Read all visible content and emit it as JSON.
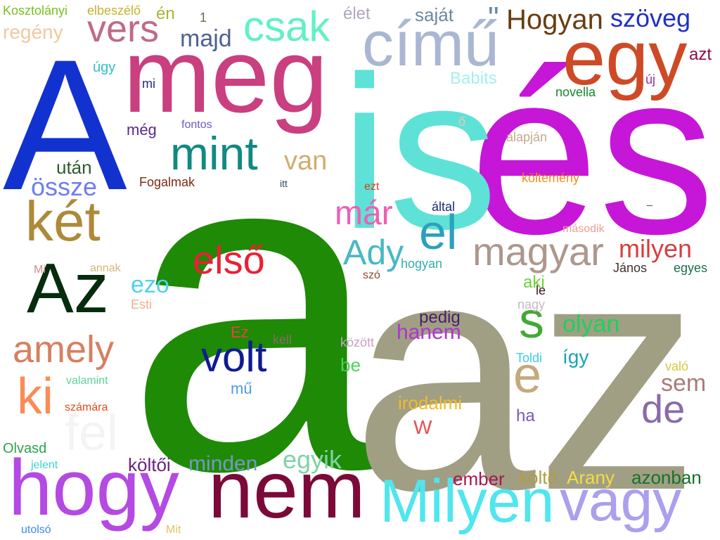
{
  "words": [
    {
      "text": "a",
      "color": "#1e8a06"
    },
    {
      "text": "az",
      "color": "#a09f84"
    },
    {
      "text": "és",
      "color": "#c616d8"
    },
    {
      "text": "is",
      "color": "#5ee2d8"
    },
    {
      "text": "A",
      "color": "#1232cf"
    },
    {
      "text": "meg",
      "color": "#c93f7f"
    },
    {
      "text": "egy",
      "color": "#ce4a26"
    },
    {
      "text": "című",
      "color": "#a9b7d2"
    },
    {
      "text": "nem",
      "color": "#7b0a38"
    },
    {
      "text": "hogy",
      "color": "#b44ae2"
    },
    {
      "text": "Milyen",
      "color": "#4fe6ee"
    },
    {
      "text": "vagy",
      "color": "#aaa0ee"
    },
    {
      "text": "Az",
      "color": "#052c0d"
    },
    {
      "text": "két",
      "color": "#ad8a3a"
    },
    {
      "text": "mint",
      "color": "#108a80"
    },
    {
      "text": "csak",
      "color": "#62f0c6"
    },
    {
      "text": "vers",
      "color": "#c06a88"
    },
    {
      "text": "el",
      "color": "#2ba1bb"
    },
    {
      "text": "magyar",
      "color": "#ad978c"
    },
    {
      "text": "első",
      "color": "#ec1f36"
    },
    {
      "text": "volt",
      "color": "#0e1a96"
    },
    {
      "text": "amely",
      "color": "#d77f61"
    },
    {
      "text": "ki",
      "color": "#fb8c55"
    },
    {
      "text": "fel",
      "color": "#f4f4f4"
    },
    {
      "text": "s",
      "color": "#42a936"
    },
    {
      "text": "e",
      "color": "#c5a97d"
    },
    {
      "text": "de",
      "color": "#8b6aa8"
    },
    {
      "text": "Ady",
      "color": "#48b8c5"
    },
    {
      "text": "már",
      "color": "#ee5fb4"
    },
    {
      "text": "Hogyan",
      "color": "#683d10"
    },
    {
      "text": "szöveg",
      "color": "#2130c7"
    },
    {
      "text": "majd",
      "color": "#4f6290"
    },
    {
      "text": "van",
      "color": "#d0ad6c"
    },
    {
      "text": "összе",
      "color": "#6e7cf2"
    },
    {
      "text": "után",
      "color": "#2c5c2c"
    },
    {
      "text": "milyen",
      "color": "#d53f3f"
    },
    {
      "text": "olyan",
      "color": "#1ad35a"
    },
    {
      "text": "hanem",
      "color": "#b033d3"
    },
    {
      "text": "egyik",
      "color": "#7fd3a4"
    },
    {
      "text": "minden",
      "color": "#7897c5"
    },
    {
      "text": "sem",
      "color": "#a87c7a"
    },
    {
      "text": "irodalmi",
      "color": "#f2ba2a"
    },
    {
      "text": "költői",
      "color": "#6b247e"
    },
    {
      "text": "ezo",
      "color": "#4fd1ee"
    },
    {
      "text": "regény",
      "color": "#f3c79f"
    },
    {
      "text": "azt",
      "color": "#8e0b4a"
    },
    {
      "text": "Arany",
      "color": "#f5dc44"
    },
    {
      "text": "azonban",
      "color": "#177129"
    },
    {
      "text": "ember",
      "color": "#a5184d"
    },
    {
      "text": "költő",
      "color": "#b49c41"
    },
    {
      "text": "pedig",
      "color": "#4b1c69"
    },
    {
      "text": "így",
      "color": "#1aa3b6"
    },
    {
      "text": "W",
      "color": "#e94e4e"
    },
    {
      "text": "mű",
      "color": "#4c9ce9"
    },
    {
      "text": "Ez",
      "color": "#e74242"
    },
    {
      "text": "élet",
      "color": "#b2a6bc"
    },
    {
      "text": "saját",
      "color": "#6a8a9e"
    },
    {
      "text": "Babits",
      "color": "#a6eeee"
    },
    {
      "text": "novella",
      "color": "#16892a"
    },
    {
      "text": "új",
      "color": "#8b3194"
    },
    {
      "text": "ő",
      "color": "#f2c2ad"
    },
    {
      "text": "alapján",
      "color": "#bfa98c"
    },
    {
      "text": "költemény",
      "color": "#f28a1d"
    },
    {
      "text": "által",
      "color": "#1c2a74"
    },
    {
      "text": "ezt",
      "color": "#d53d1d"
    },
    {
      "text": "második",
      "color": "#f09c92"
    },
    {
      "text": "János",
      "color": "#403030"
    },
    {
      "text": "egyes",
      "color": "#1b6e4a"
    },
    {
      "text": "le",
      "color": "#3a1220"
    },
    {
      "text": "nagy",
      "color": "#c8b8c8"
    },
    {
      "text": "aki",
      "color": "#6ed13a"
    },
    {
      "text": "szó",
      "color": "#8a4a2c"
    },
    {
      "text": "hogyan",
      "color": "#32b0aa"
    },
    {
      "text": "között",
      "color": "#c8a0c8"
    },
    {
      "text": "be",
      "color": "#4cd15c"
    },
    {
      "text": "kell",
      "color": "#8a6a6a"
    },
    {
      "text": "Toldi",
      "color": "#3acde2"
    },
    {
      "text": "való",
      "color": "#d2c83a"
    },
    {
      "text": "ha",
      "color": "#7a58b8"
    },
    {
      "text": "Kosztolányi",
      "color": "#7abf1f"
    },
    {
      "text": "elbeszélő",
      "color": "#c4b42b"
    },
    {
      "text": "én",
      "color": "#aab433"
    },
    {
      "text": "1",
      "color": "#6a6a4a"
    },
    {
      "text": "úgy",
      "color": "#2ec0c9"
    },
    {
      "text": "mi",
      "color": "#2a2a7c"
    },
    {
      "text": "még",
      "color": "#5a2a8c"
    },
    {
      "text": "fontos",
      "color": "#6a5ac6"
    },
    {
      "text": "Fogalmak",
      "color": "#7c2a14"
    },
    {
      "text": "itt",
      "color": "#2a4a6a"
    },
    {
      "text": "Mi",
      "color": "#d48a8a"
    },
    {
      "text": "annak",
      "color": "#d2b67c"
    },
    {
      "text": "Esti",
      "color": "#f3ae8c"
    },
    {
      "text": "valamint",
      "color": "#5fd19a"
    },
    {
      "text": "számára",
      "color": "#e54a1a"
    },
    {
      "text": "Olvasd",
      "color": "#2aa34a"
    },
    {
      "text": "jelent",
      "color": "#3ed1d1"
    },
    {
      "text": "utolsó",
      "color": "#3a8ae5"
    },
    {
      "text": "Mit",
      "color": "#e2c35e"
    },
    {
      "text": "_",
      "color": "#3a3a3a"
    },
    {
      "text": "\"",
      "color": "#6a8a9e"
    }
  ]
}
